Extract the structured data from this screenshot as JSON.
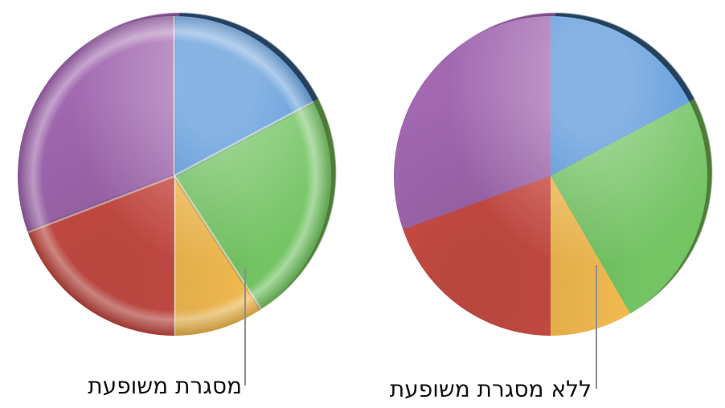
{
  "page": {
    "background": "#ffffff",
    "callout_line_color": "#8e8e8e",
    "text_color": "#121212"
  },
  "annotations": {
    "left_label": "מסגרת משופעת",
    "right_label": "ללא מסגרת משופעת"
  },
  "chart_data": [
    {
      "type": "pie",
      "style": "beveled-border-3d",
      "annotation": "מסגרת משופעת",
      "legend": "none",
      "slices": [
        {
          "name": "blue-slice",
          "color": "#5594d9",
          "back_color": "#24425e",
          "start_deg": 0,
          "end_deg": 62,
          "value_pct": 17
        },
        {
          "name": "green-slice",
          "color": "#74c464",
          "back_color": "#4f7c3a",
          "start_deg": 62,
          "end_deg": 147,
          "value_pct": 24
        },
        {
          "name": "yellow-slice",
          "color": "#f4bc51",
          "back_color": "#c8923a",
          "start_deg": 147,
          "end_deg": 180,
          "value_pct": 9
        },
        {
          "name": "red-slice",
          "color": "#cf4f47",
          "back_color": "#a33c36",
          "start_deg": 180,
          "end_deg": 249,
          "value_pct": 19
        },
        {
          "name": "purple-slice",
          "color": "#a268b0",
          "back_color": "#7d4e8a",
          "start_deg": 249,
          "end_deg": 360,
          "value_pct": 31
        }
      ]
    },
    {
      "type": "pie",
      "style": "no-border-3d",
      "annotation": "ללא מסגרת משופעת",
      "legend": "none",
      "slices": [
        {
          "name": "blue-slice",
          "color": "#5594d9",
          "back_color": "#24425e",
          "start_deg": 0,
          "end_deg": 62,
          "value_pct": 17
        },
        {
          "name": "green-slice",
          "color": "#74c464",
          "back_color": "#4f7c3a",
          "start_deg": 62,
          "end_deg": 150,
          "value_pct": 24
        },
        {
          "name": "yellow-slice",
          "color": "#f4bc51",
          "back_color": "#c8923a",
          "start_deg": 150,
          "end_deg": 180,
          "value_pct": 9
        },
        {
          "name": "red-slice",
          "color": "#cf4f47",
          "back_color": "#a33c36",
          "start_deg": 180,
          "end_deg": 250,
          "value_pct": 19
        },
        {
          "name": "purple-slice",
          "color": "#a268b0",
          "back_color": "#7d4e8a",
          "start_deg": 250,
          "end_deg": 360,
          "value_pct": 31
        }
      ]
    }
  ]
}
